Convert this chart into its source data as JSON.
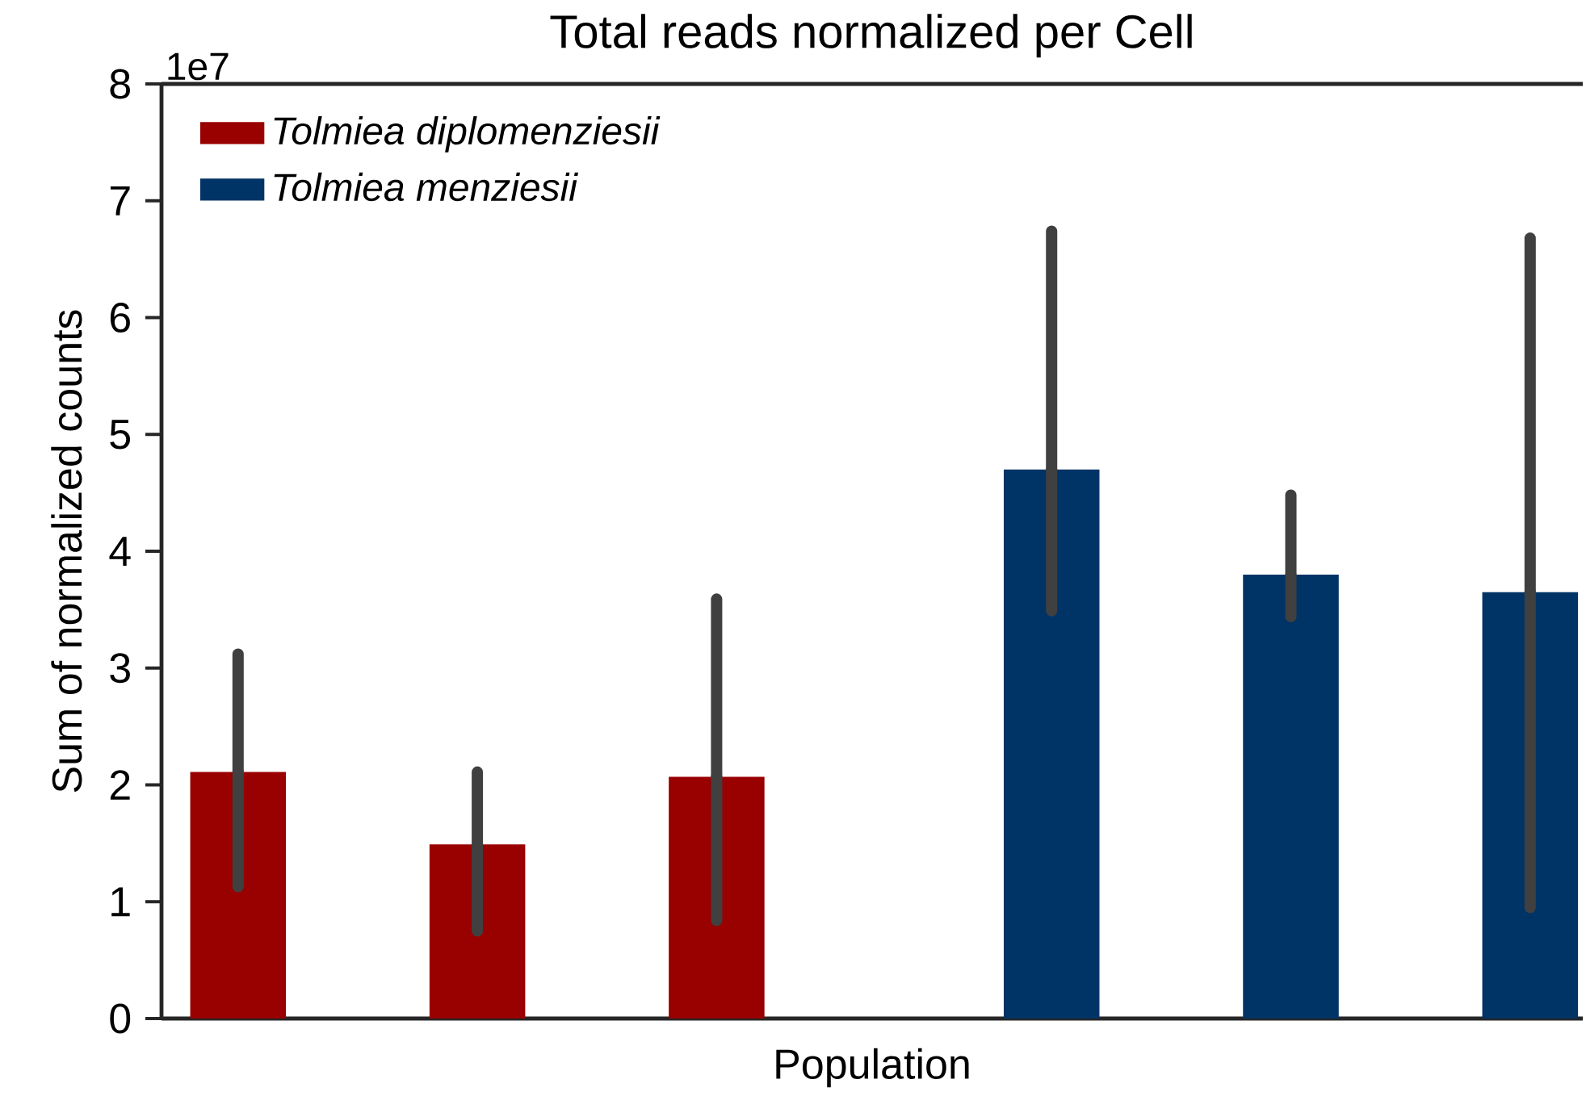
{
  "chart_data": {
    "type": "bar",
    "title": "Total reads normalized per Cell",
    "xlabel": "Population",
    "ylabel": "Sum of normalized counts",
    "annotations": [
      "1e7"
    ],
    "categories": [
      null,
      null,
      null,
      null,
      null,
      null
    ],
    "series": [
      {
        "name": "Tolmiea diplomenziesii",
        "color": "#990000",
        "values": [
          2.11,
          1.49,
          2.07,
          null,
          null,
          null
        ],
        "errors": [
          [
            1.13,
            3.12
          ],
          [
            0.75,
            2.11
          ],
          [
            0.84,
            3.59
          ],
          null,
          null,
          null
        ]
      },
      {
        "name": "Tolmiea menziesii",
        "color": "#003366",
        "values": [
          null,
          null,
          null,
          4.7,
          3.8,
          3.65
        ],
        "errors": [
          null,
          null,
          null,
          [
            3.49,
            6.74
          ],
          [
            3.44,
            4.48
          ],
          [
            0.95,
            6.68
          ]
        ]
      }
    ],
    "ylim": [
      0,
      8
    ],
    "yticks": [
      0,
      1,
      2,
      3,
      4,
      5,
      6,
      7,
      8
    ],
    "legend": "top left",
    "grid": false
  }
}
